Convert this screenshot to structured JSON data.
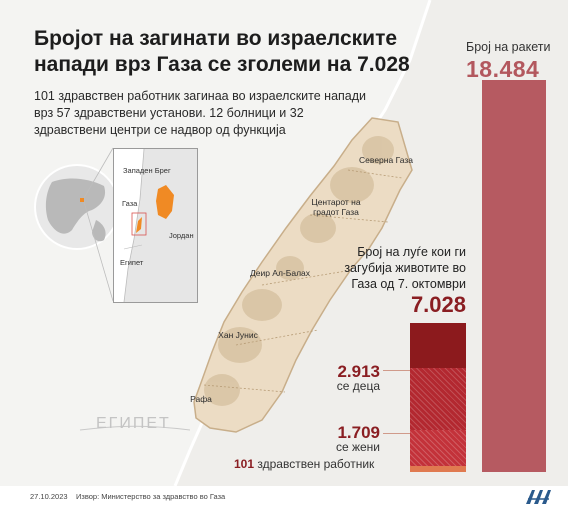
{
  "headline": {
    "line1": "Бројот на загинати во израелските",
    "line2": "напади врз Газа се зголеми на 7.028"
  },
  "subtitle": "101 здравствен работник загинаа во израелските напади врз 57 здравствени установи. 12 болници и 32 здравствени центри се надвор од функција",
  "map": {
    "regions": {
      "north": "Северна Газа",
      "center_line1": "Центарот на",
      "center_line2": "градот Газа",
      "deir": "Деир Ал-Балах",
      "khan": "Хан Јунис",
      "rafah": "Рафа"
    },
    "egypt": "ЕГИПЕТ",
    "colors": {
      "strip": "#ecdcc4",
      "strip_border": "#c8ae8a",
      "sea": "#f4f4f2"
    }
  },
  "inset": {
    "west_bank": "Западен Брег",
    "gaza": "Газа",
    "jordan": "Јордан",
    "egypt": "Египет",
    "highlight_color": "#f08a24"
  },
  "rockets": {
    "label": "Број на ракети",
    "value": "18.484",
    "color": "#b65a61"
  },
  "deaths": {
    "label": "Број на луѓе кои ги загубија животите во Газа од 7. октомври",
    "value": "7.028",
    "total": 7028,
    "color": "#8c1a1d"
  },
  "breakdown": {
    "children": {
      "value": "2.913",
      "caption": "се деца",
      "count": 2913
    },
    "women": {
      "value": "1.709",
      "caption": "се жени",
      "count": 1709
    },
    "workers": {
      "value": "101",
      "caption": "здравствен работник",
      "count": 101
    }
  },
  "footer": {
    "date": "27.10.2023",
    "source": "Извор: Министерство за здравство во Газа",
    "logo": "AA"
  }
}
